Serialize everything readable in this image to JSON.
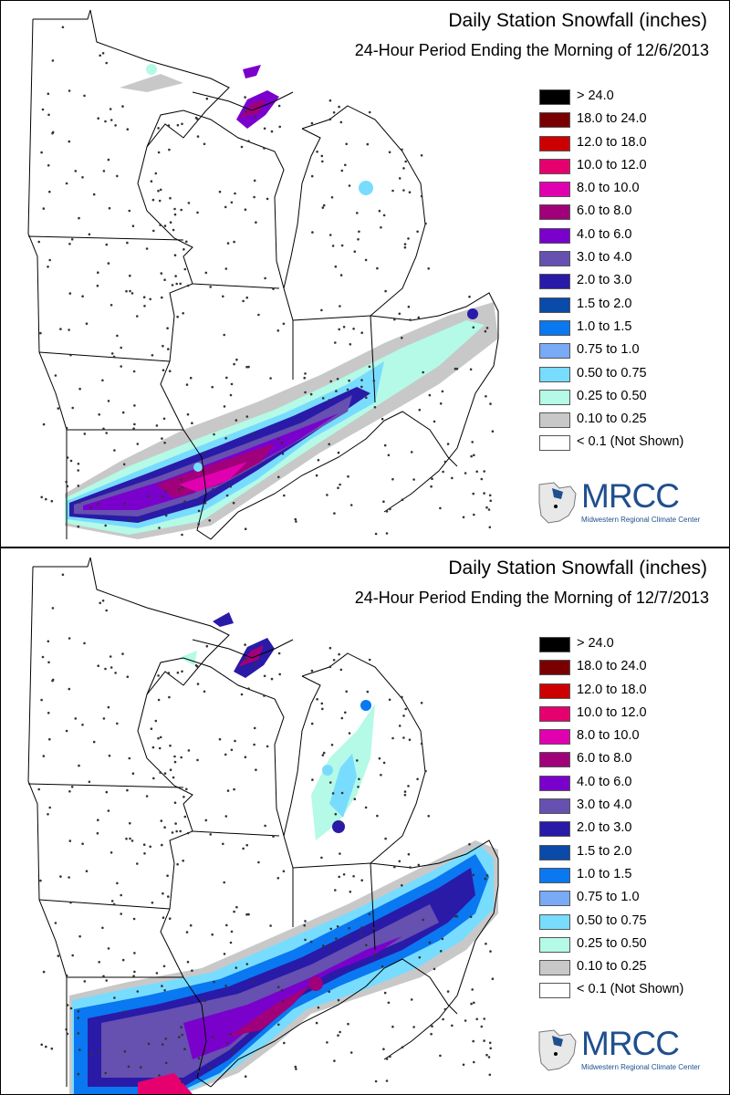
{
  "panels": [
    {
      "title": "Daily Station Snowfall (inches)",
      "subtitle": "24-Hour Period Ending the Morning of 12/6/2013"
    },
    {
      "title": "Daily Station Snowfall (inches)",
      "subtitle": "24-Hour Period Ending the Morning of 12/7/2013"
    }
  ],
  "legend": [
    {
      "label": "> 24.0",
      "color": "#000000"
    },
    {
      "label": "18.0 to 24.0",
      "color": "#7a0000"
    },
    {
      "label": "12.0 to 18.0",
      "color": "#cc0000"
    },
    {
      "label": "10.0 to 12.0",
      "color": "#e6006e"
    },
    {
      "label": "8.0 to 10.0",
      "color": "#e000b0"
    },
    {
      "label": "6.0 to 8.0",
      "color": "#a0007a"
    },
    {
      "label": "4.0 to 6.0",
      "color": "#7a00cc"
    },
    {
      "label": "3.0 to 4.0",
      "color": "#6650b0"
    },
    {
      "label": "2.0 to 3.0",
      "color": "#2a1aa8"
    },
    {
      "label": "1.5 to 2.0",
      "color": "#0a4aa8"
    },
    {
      "label": "1.0 to 1.5",
      "color": "#0a78f0"
    },
    {
      "label": "0.75 to 1.0",
      "color": "#78aaf5"
    },
    {
      "label": "0.50 to 0.75",
      "color": "#78dcff"
    },
    {
      "label": "0.25 to 0.50",
      "color": "#b4fae6"
    },
    {
      "label": "0.10 to 0.25",
      "color": "#c8c8c8"
    },
    {
      "label": "< 0.1 (Not Shown)",
      "color": "#ffffff"
    }
  ],
  "logo": {
    "text": "MRCC",
    "subtext": "Midwestern Regional Climate Center"
  }
}
